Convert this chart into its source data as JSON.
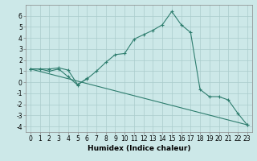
{
  "xlabel": "Humidex (Indice chaleur)",
  "ylabel": "",
  "bg_color": "#cce8e8",
  "grid_color": "#aacccc",
  "line_color": "#2e7d6e",
  "xlim": [
    -0.5,
    23.5
  ],
  "ylim": [
    -4.5,
    7.0
  ],
  "xticks": [
    0,
    1,
    2,
    3,
    4,
    5,
    6,
    7,
    8,
    9,
    10,
    11,
    12,
    13,
    14,
    15,
    16,
    17,
    18,
    19,
    20,
    21,
    22,
    23
  ],
  "yticks": [
    -4,
    -3,
    -2,
    -1,
    0,
    1,
    2,
    3,
    4,
    5,
    6
  ],
  "series": [
    [
      1.2,
      1.2,
      1.2,
      1.3,
      1.1,
      -0.2,
      0.3,
      1.0,
      1.8,
      2.5,
      2.6,
      3.9,
      4.3,
      4.7,
      5.2,
      6.4,
      5.2,
      4.5,
      -0.65,
      -1.3,
      -1.3,
      -1.6,
      -2.8,
      -3.85
    ],
    [
      1.2,
      1.2,
      1.0,
      1.2,
      0.5,
      -0.25,
      0.35,
      null,
      null,
      null,
      null,
      null,
      null,
      null,
      null,
      null,
      null,
      null,
      null,
      null,
      null,
      null,
      null,
      null
    ],
    [
      1.2,
      null,
      null,
      null,
      null,
      null,
      null,
      null,
      null,
      null,
      null,
      null,
      null,
      null,
      null,
      null,
      null,
      null,
      null,
      null,
      null,
      null,
      null,
      -3.85
    ]
  ],
  "xlabel_fontsize": 6.5,
  "tick_fontsize": 5.5
}
